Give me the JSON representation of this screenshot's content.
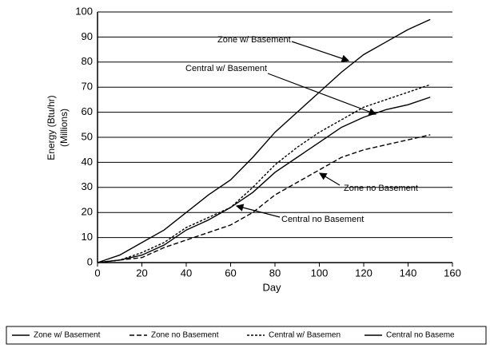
{
  "chart_data": {
    "type": "line",
    "xlabel": "Day",
    "ylabel": [
      "Energy (Btu/hr)",
      "(Millions)"
    ],
    "x": [
      0,
      10,
      20,
      30,
      40,
      50,
      60,
      70,
      80,
      90,
      100,
      110,
      120,
      130,
      140,
      150
    ],
    "series": [
      {
        "name": "Zone w/ Basement",
        "color": "#000000",
        "dash": "none",
        "values": [
          0,
          3,
          8,
          13,
          20,
          27,
          33,
          42,
          52,
          60,
          68,
          76,
          83,
          88,
          93,
          97
        ]
      },
      {
        "name": "Zone no Basement",
        "color": "#000000",
        "dash": "6 3",
        "values": [
          0,
          1,
          2,
          6,
          9,
          12,
          15,
          20,
          27,
          32,
          37,
          42,
          45,
          47,
          49,
          51
        ]
      },
      {
        "name": "Central w/ Basemen",
        "color": "#000000",
        "dash": "3 2",
        "values": [
          0,
          1,
          4,
          8,
          14,
          18,
          22,
          30,
          39,
          46,
          52,
          57,
          62,
          65,
          68,
          71
        ]
      },
      {
        "name": "Central no Baseme",
        "color": "#000000",
        "dash": "none",
        "values": [
          0,
          1,
          3,
          7,
          13,
          17,
          22,
          28,
          36,
          42,
          48,
          54,
          58,
          61,
          63,
          66
        ]
      }
    ],
    "annotations": [
      "Zone w/ Basement",
      "Central w/ Basement",
      "Zone no Basement",
      "Central no Basement"
    ],
    "xlim": [
      0,
      160
    ],
    "xticks": [
      0,
      20,
      40,
      60,
      80,
      100,
      120,
      140,
      160
    ],
    "ylim": [
      0,
      100
    ],
    "yticks": [
      0,
      10,
      20,
      30,
      40,
      50,
      60,
      70,
      80,
      90,
      100
    ],
    "grid": true,
    "legend": "bottom"
  }
}
